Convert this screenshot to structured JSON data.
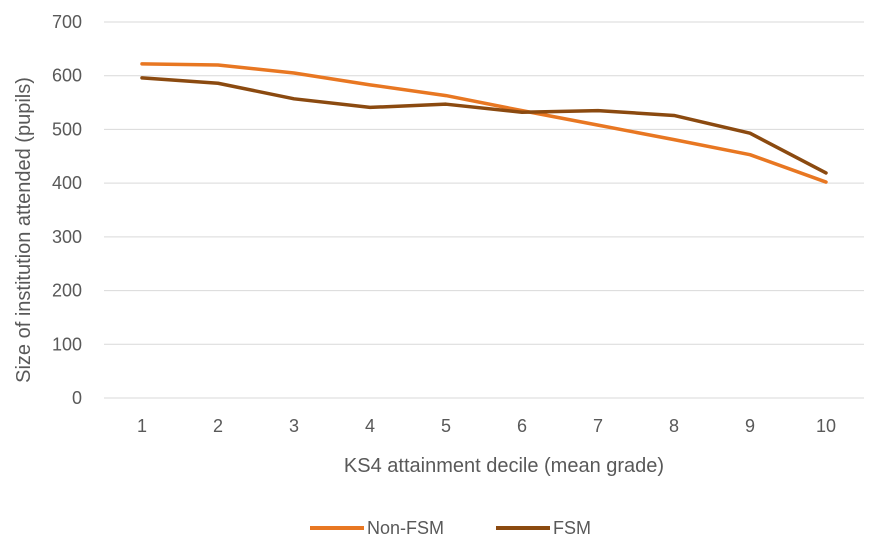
{
  "chart_data": {
    "type": "line",
    "title": "",
    "xlabel": "KS4 attainment decile (mean grade)",
    "ylabel": "Size of institution attended (pupils)",
    "categories": [
      "1",
      "2",
      "3",
      "4",
      "5",
      "6",
      "7",
      "8",
      "9",
      "10"
    ],
    "y_ticks": [
      "0",
      "100",
      "200",
      "300",
      "400",
      "500",
      "600",
      "700"
    ],
    "ylim": [
      0,
      700
    ],
    "grid": true,
    "legend_position": "bottom",
    "series": [
      {
        "name": "Non-FSM",
        "color": "#E87722",
        "values": [
          622,
          620,
          605,
          583,
          563,
          535,
          508,
          481,
          453,
          402
        ]
      },
      {
        "name": "FSM",
        "color": "#8B4A10",
        "values": [
          596,
          586,
          557,
          541,
          547,
          532,
          535,
          526,
          493,
          419
        ]
      }
    ]
  }
}
